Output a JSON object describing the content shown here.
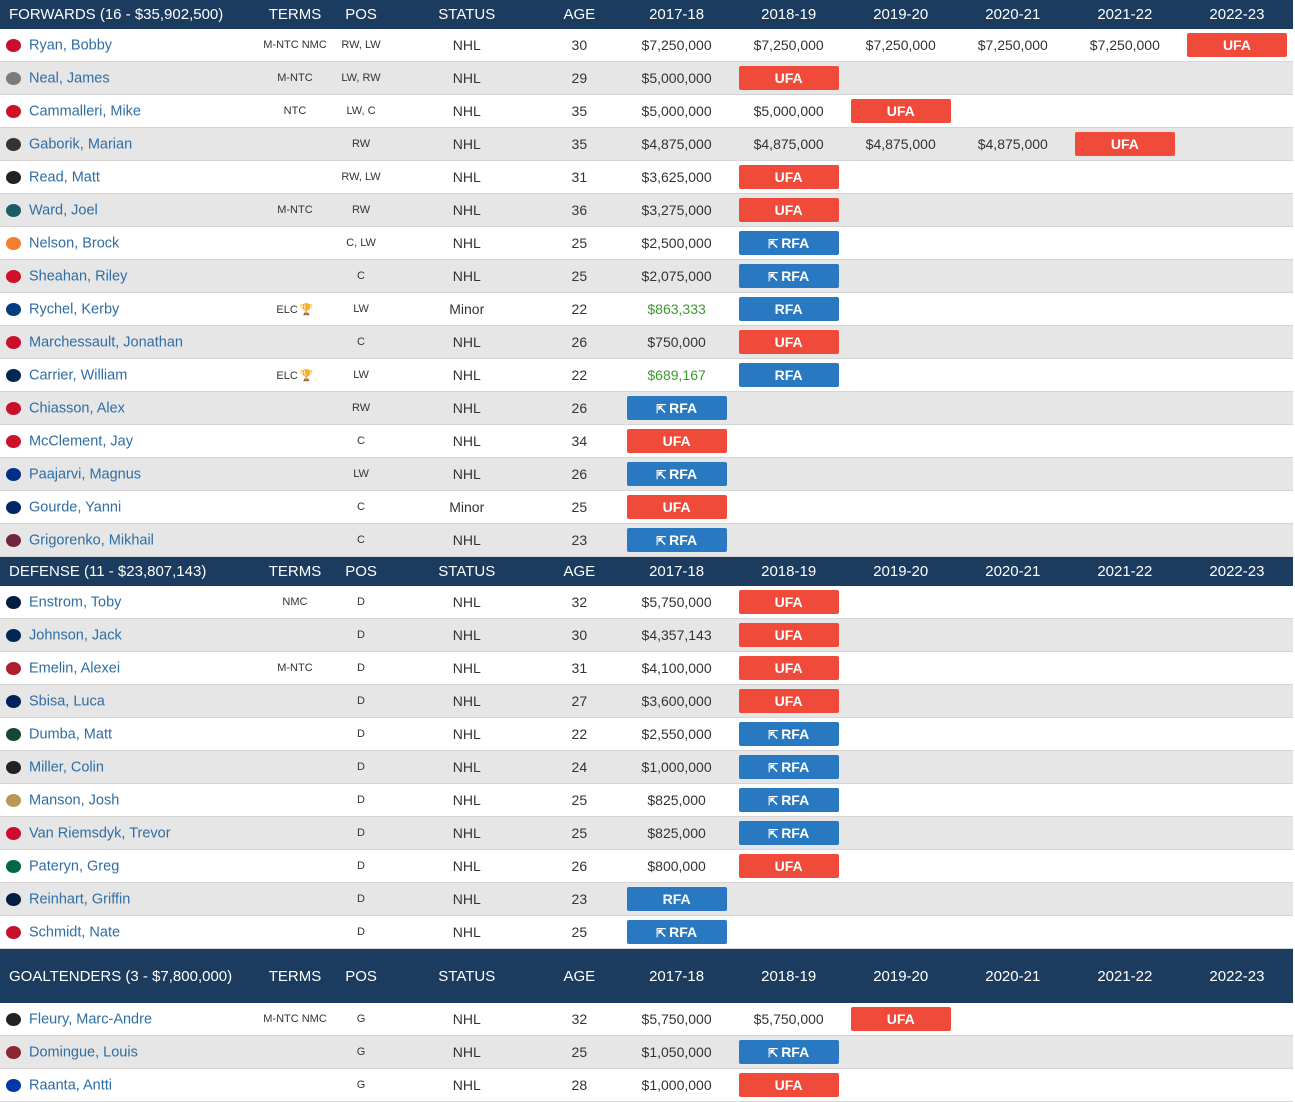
{
  "columns": [
    "TERMS",
    "POS",
    "STATUS",
    "AGE",
    "2017-18",
    "2018-19",
    "2019-20",
    "2020-21",
    "2021-22",
    "2022-23"
  ],
  "sections": [
    {
      "title": "FORWARDS (16 - $35,902,500)",
      "players": [
        {
          "name": "Ryan, Bobby",
          "logo_color": "#c8102e",
          "terms": "M-NTC NMC",
          "pos": "RW, LW",
          "status": "NHL",
          "age": "30",
          "years": [
            {
              "v": "$7,250,000"
            },
            {
              "v": "$7,250,000"
            },
            {
              "v": "$7,250,000"
            },
            {
              "v": "$7,250,000"
            },
            {
              "v": "$7,250,000"
            },
            {
              "badge": "UFA"
            }
          ]
        },
        {
          "name": "Neal, James",
          "logo_color": "#7b7b7b",
          "terms": "M-NTC",
          "pos": "LW, RW",
          "status": "NHL",
          "age": "29",
          "years": [
            {
              "v": "$5,000,000"
            },
            {
              "badge": "UFA"
            }
          ]
        },
        {
          "name": "Cammalleri, Mike",
          "logo_color": "#ce1126",
          "terms": "NTC",
          "pos": "LW, C",
          "status": "NHL",
          "age": "35",
          "years": [
            {
              "v": "$5,000,000"
            },
            {
              "v": "$5,000,000"
            },
            {
              "badge": "UFA"
            }
          ]
        },
        {
          "name": "Gaborik, Marian",
          "logo_color": "#333333",
          "terms": "",
          "pos": "RW",
          "status": "NHL",
          "age": "35",
          "years": [
            {
              "v": "$4,875,000"
            },
            {
              "v": "$4,875,000"
            },
            {
              "v": "$4,875,000"
            },
            {
              "v": "$4,875,000"
            },
            {
              "badge": "UFA"
            }
          ]
        },
        {
          "name": "Read, Matt",
          "logo_color": "#222222",
          "terms": "",
          "pos": "RW, LW",
          "status": "NHL",
          "age": "31",
          "years": [
            {
              "v": "$3,625,000"
            },
            {
              "badge": "UFA"
            }
          ]
        },
        {
          "name": "Ward, Joel",
          "logo_color": "#1a5e63",
          "terms": "M-NTC",
          "pos": "RW",
          "status": "NHL",
          "age": "36",
          "years": [
            {
              "v": "$3,275,000"
            },
            {
              "badge": "UFA"
            }
          ]
        },
        {
          "name": "Nelson, Brock",
          "logo_color": "#f47d30",
          "terms": "",
          "pos": "C, LW",
          "status": "NHL",
          "age": "25",
          "years": [
            {
              "v": "$2,500,000"
            },
            {
              "badge": "RFA",
              "arrow": true
            }
          ]
        },
        {
          "name": "Sheahan, Riley",
          "logo_color": "#ce1126",
          "terms": "",
          "pos": "C",
          "status": "NHL",
          "age": "25",
          "years": [
            {
              "v": "$2,075,000"
            },
            {
              "badge": "RFA",
              "arrow": true
            }
          ]
        },
        {
          "name": "Rychel, Kerby",
          "logo_color": "#003e7e",
          "terms": "ELC",
          "trophy": true,
          "pos": "LW",
          "status": "Minor",
          "age": "22",
          "years": [
            {
              "v": "$863,333",
              "elc": true
            },
            {
              "badge": "RFA"
            }
          ]
        },
        {
          "name": "Marchessault, Jonathan",
          "logo_color": "#c8102e",
          "terms": "",
          "pos": "C",
          "status": "NHL",
          "age": "26",
          "years": [
            {
              "v": "$750,000"
            },
            {
              "badge": "UFA"
            }
          ]
        },
        {
          "name": "Carrier, William",
          "logo_color": "#002654",
          "terms": "ELC",
          "trophy": true,
          "pos": "LW",
          "status": "NHL",
          "age": "22",
          "years": [
            {
              "v": "$689,167",
              "elc": true
            },
            {
              "badge": "RFA"
            }
          ]
        },
        {
          "name": "Chiasson, Alex",
          "logo_color": "#c8102e",
          "terms": "",
          "pos": "RW",
          "status": "NHL",
          "age": "26",
          "years": [
            {
              "badge": "RFA",
              "arrow": true
            }
          ]
        },
        {
          "name": "McClement, Jay",
          "logo_color": "#ce1126",
          "terms": "",
          "pos": "C",
          "status": "NHL",
          "age": "34",
          "years": [
            {
              "badge": "UFA"
            }
          ]
        },
        {
          "name": "Paajarvi, Magnus",
          "logo_color": "#002f87",
          "terms": "",
          "pos": "LW",
          "status": "NHL",
          "age": "26",
          "years": [
            {
              "badge": "RFA",
              "arrow": true
            }
          ]
        },
        {
          "name": "Gourde, Yanni",
          "logo_color": "#002868",
          "terms": "",
          "pos": "C",
          "status": "Minor",
          "age": "25",
          "years": [
            {
              "badge": "UFA"
            }
          ]
        },
        {
          "name": "Grigorenko, Mikhail",
          "logo_color": "#6f263d",
          "terms": "",
          "pos": "C",
          "status": "NHL",
          "age": "23",
          "years": [
            {
              "badge": "RFA",
              "arrow": true
            }
          ]
        }
      ]
    },
    {
      "title": "DEFENSE (11 - $23,807,143)",
      "players": [
        {
          "name": "Enstrom, Toby",
          "logo_color": "#041e42",
          "terms": "NMC",
          "pos": "D",
          "status": "NHL",
          "age": "32",
          "years": [
            {
              "v": "$5,750,000"
            },
            {
              "badge": "UFA"
            }
          ]
        },
        {
          "name": "Johnson, Jack",
          "logo_color": "#002654",
          "terms": "",
          "pos": "D",
          "status": "NHL",
          "age": "30",
          "years": [
            {
              "v": "$4,357,143"
            },
            {
              "badge": "UFA"
            }
          ]
        },
        {
          "name": "Emelin, Alexei",
          "logo_color": "#af1e2d",
          "terms": "M-NTC",
          "pos": "D",
          "status": "NHL",
          "age": "31",
          "years": [
            {
              "v": "$4,100,000"
            },
            {
              "badge": "UFA"
            }
          ]
        },
        {
          "name": "Sbisa, Luca",
          "logo_color": "#00205b",
          "terms": "",
          "pos": "D",
          "status": "NHL",
          "age": "27",
          "years": [
            {
              "v": "$3,600,000"
            },
            {
              "badge": "UFA"
            }
          ]
        },
        {
          "name": "Dumba, Matt",
          "logo_color": "#154734",
          "terms": "",
          "pos": "D",
          "status": "NHL",
          "age": "22",
          "years": [
            {
              "v": "$2,550,000"
            },
            {
              "badge": "RFA",
              "arrow": true
            }
          ]
        },
        {
          "name": "Miller, Colin",
          "logo_color": "#222222",
          "terms": "",
          "pos": "D",
          "status": "NHL",
          "age": "24",
          "years": [
            {
              "v": "$1,000,000"
            },
            {
              "badge": "RFA",
              "arrow": true
            }
          ]
        },
        {
          "name": "Manson, Josh",
          "logo_color": "#b9975b",
          "terms": "",
          "pos": "D",
          "status": "NHL",
          "age": "25",
          "years": [
            {
              "v": "$825,000"
            },
            {
              "badge": "RFA",
              "arrow": true
            }
          ]
        },
        {
          "name": "Van Riemsdyk, Trevor",
          "logo_color": "#cf0a2c",
          "terms": "",
          "pos": "D",
          "status": "NHL",
          "age": "25",
          "years": [
            {
              "v": "$825,000"
            },
            {
              "badge": "RFA",
              "arrow": true
            }
          ]
        },
        {
          "name": "Pateryn, Greg",
          "logo_color": "#006847",
          "terms": "",
          "pos": "D",
          "status": "NHL",
          "age": "26",
          "years": [
            {
              "v": "$800,000"
            },
            {
              "badge": "UFA"
            }
          ]
        },
        {
          "name": "Reinhart, Griffin",
          "logo_color": "#041e42",
          "terms": "",
          "pos": "D",
          "status": "NHL",
          "age": "23",
          "years": [
            {
              "badge": "RFA"
            }
          ]
        },
        {
          "name": "Schmidt, Nate",
          "logo_color": "#c8102e",
          "terms": "",
          "pos": "D",
          "status": "NHL",
          "age": "25",
          "years": [
            {
              "badge": "RFA",
              "arrow": true
            }
          ]
        }
      ]
    },
    {
      "title": "GOALTENDERS (3 - $7,800,000)",
      "tall": true,
      "players": [
        {
          "name": "Fleury, Marc-Andre",
          "logo_color": "#222222",
          "terms": "M-NTC NMC",
          "pos": "G",
          "status": "NHL",
          "age": "32",
          "years": [
            {
              "v": "$5,750,000"
            },
            {
              "v": "$5,750,000"
            },
            {
              "badge": "UFA"
            }
          ]
        },
        {
          "name": "Domingue, Louis",
          "logo_color": "#8c2633",
          "terms": "",
          "pos": "G",
          "status": "NHL",
          "age": "25",
          "years": [
            {
              "v": "$1,050,000"
            },
            {
              "badge": "RFA",
              "arrow": true
            }
          ]
        },
        {
          "name": "Raanta, Antti",
          "logo_color": "#0038a8",
          "terms": "",
          "pos": "G",
          "status": "NHL",
          "age": "28",
          "years": [
            {
              "v": "$1,000,000"
            },
            {
              "badge": "UFA"
            }
          ]
        }
      ]
    }
  ]
}
